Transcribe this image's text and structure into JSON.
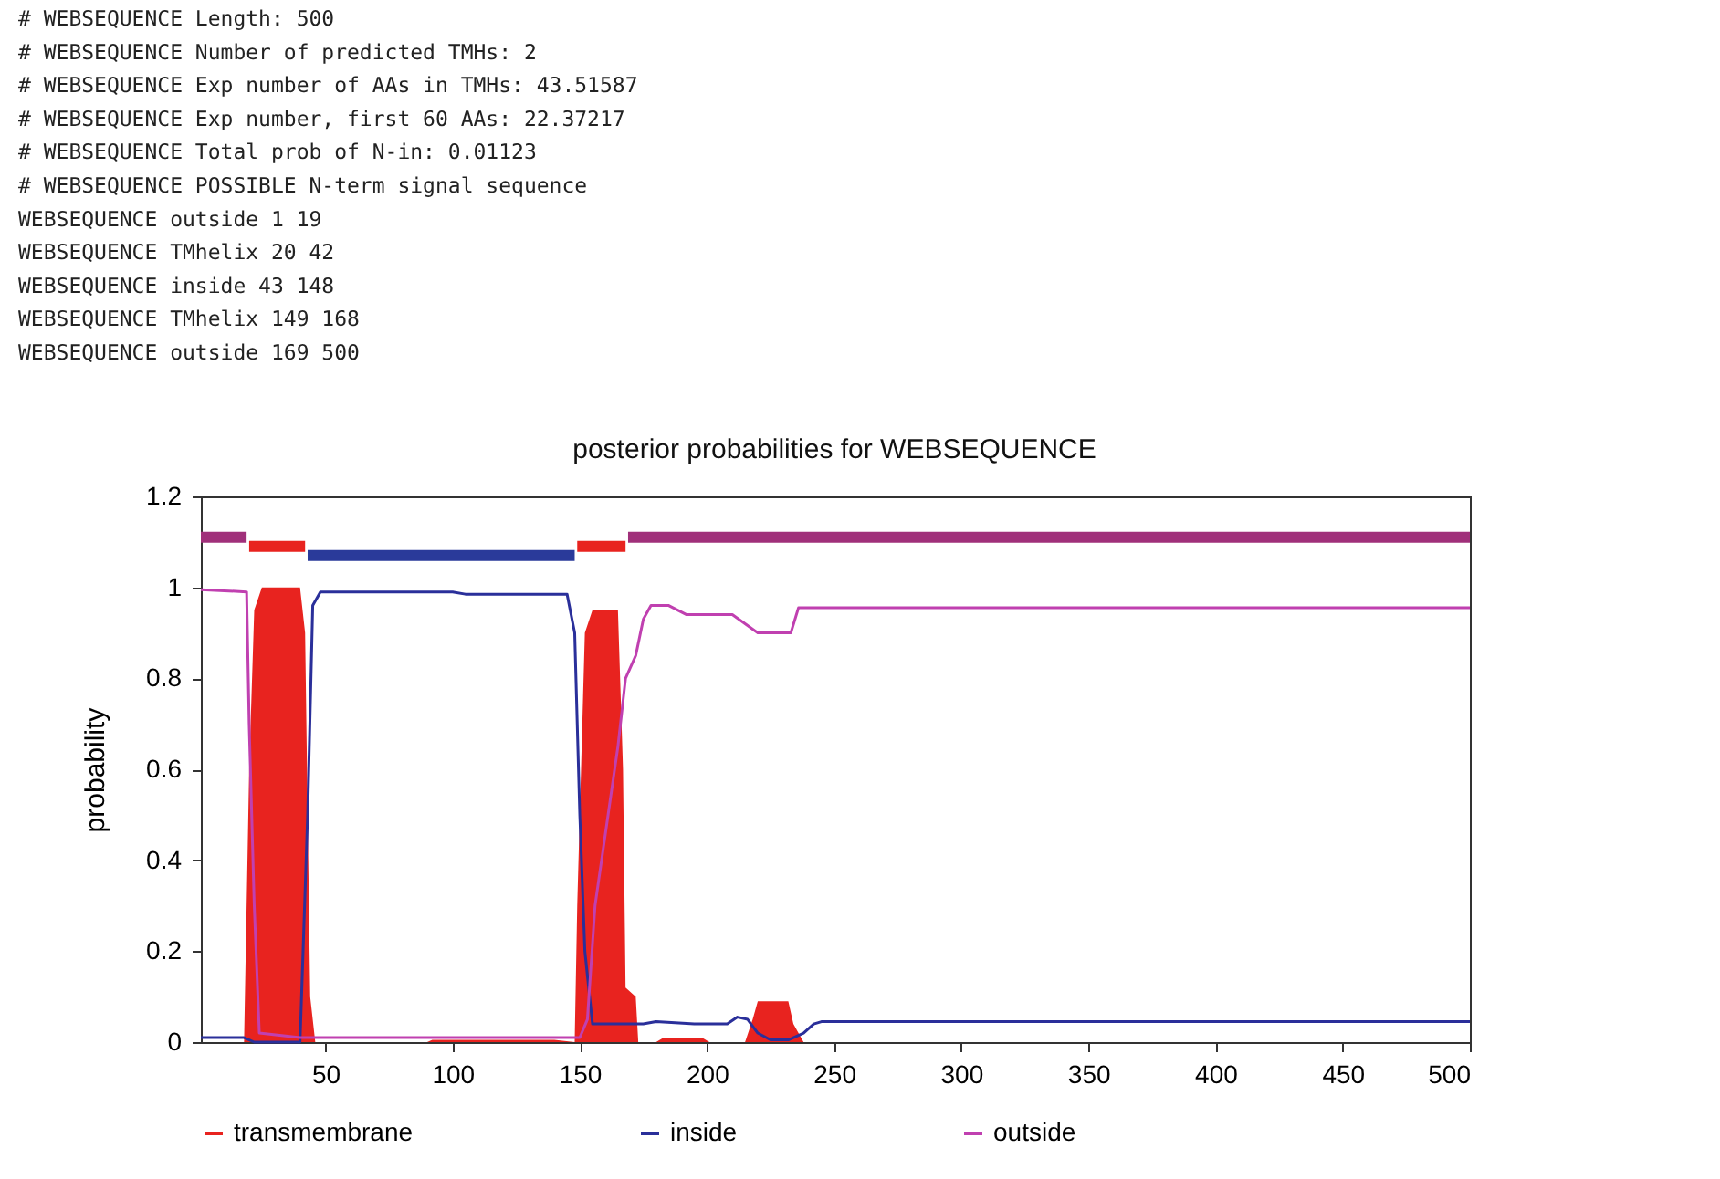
{
  "chart_data": {
    "type": "line",
    "title": "posterior probabilities for WEBSEQUENCE",
    "ylabel": "probability",
    "annotations": [
      "# WEBSEQUENCE Length: 500",
      "# WEBSEQUENCE Number of predicted TMHs:  2",
      "# WEBSEQUENCE Exp number of AAs in TMHs: 43.51587",
      "# WEBSEQUENCE Exp number, first 60 AAs:  22.37217",
      "# WEBSEQUENCE Total prob of N-in:        0.01123",
      "# WEBSEQUENCE POSSIBLE N-term signal sequence",
      "WEBSEQUENCE      outside      1    19",
      "WEBSEQUENCE      TMhelix     20    42",
      "WEBSEQUENCE      inside      43   148",
      "WEBSEQUENCE      TMhelix    149   168",
      "WEBSEQUENCE      outside    169   500"
    ],
    "xlim": [
      1,
      500
    ],
    "xticks": [
      50,
      100,
      150,
      200,
      250,
      300,
      350,
      400,
      450,
      500
    ],
    "ylim": [
      0,
      1.2
    ],
    "yticks": [
      0,
      0.2,
      0.4,
      0.6,
      0.8,
      1,
      1.2
    ],
    "grid": false,
    "legend": "bottom",
    "series": [
      {
        "name": "transmembrane",
        "type": "area",
        "color": "#e8231f",
        "x": [
          1,
          18,
          20,
          22,
          25,
          40,
          42,
          44,
          46,
          90,
          92,
          140,
          148,
          149,
          152,
          155,
          165,
          167,
          168,
          172,
          173,
          180,
          183,
          198,
          201,
          215,
          218,
          220,
          232,
          234,
          238,
          500
        ],
        "values": [
          0,
          0,
          0.6,
          0.95,
          1,
          1,
          0.9,
          0.1,
          0,
          0,
          0.005,
          0.005,
          0,
          0.3,
          0.9,
          0.95,
          0.95,
          0.6,
          0.12,
          0.1,
          0,
          0,
          0.01,
          0.01,
          0,
          0,
          0.05,
          0.09,
          0.09,
          0.04,
          0,
          0
        ]
      },
      {
        "name": "inside",
        "color": "#2a2f9a",
        "x": [
          1,
          18,
          22,
          40,
          43,
          45,
          48,
          100,
          105,
          145,
          148,
          150,
          152,
          155,
          175,
          180,
          195,
          208,
          212,
          216,
          220,
          225,
          232,
          238,
          242,
          245,
          500
        ],
        "values": [
          0.01,
          0.01,
          0,
          0,
          0.5,
          0.96,
          0.99,
          0.99,
          0.985,
          0.985,
          0.9,
          0.5,
          0.2,
          0.04,
          0.04,
          0.045,
          0.04,
          0.04,
          0.055,
          0.05,
          0.02,
          0.005,
          0.005,
          0.02,
          0.04,
          0.045,
          0.045
        ]
      },
      {
        "name": "outside",
        "color": "#c040b0",
        "x": [
          1,
          19,
          20,
          22,
          24,
          40,
          150,
          153,
          156,
          165,
          168,
          172,
          175,
          178,
          185,
          192,
          210,
          220,
          233,
          236,
          500
        ],
        "values": [
          0.995,
          0.99,
          0.7,
          0.3,
          0.02,
          0.01,
          0.01,
          0.05,
          0.3,
          0.65,
          0.8,
          0.85,
          0.93,
          0.96,
          0.96,
          0.94,
          0.94,
          0.9,
          0.9,
          0.955,
          0.955
        ]
      },
      {
        "color": "#a0307a",
        "x": [
          1,
          19,
          100,
          169,
          500
        ],
        "values": [
          1.11,
          1.11,
          null,
          1.11,
          1.11
        ]
      },
      {
        "color": "#e8231f",
        "x": [
          20,
          42,
          100,
          149,
          168
        ],
        "values": [
          1.09,
          1.09,
          null,
          1.09,
          1.09
        ]
      },
      {
        "color": "#2a3a9a",
        "x": [
          43,
          148
        ],
        "values": [
          1.07,
          1.07
        ]
      }
    ]
  }
}
